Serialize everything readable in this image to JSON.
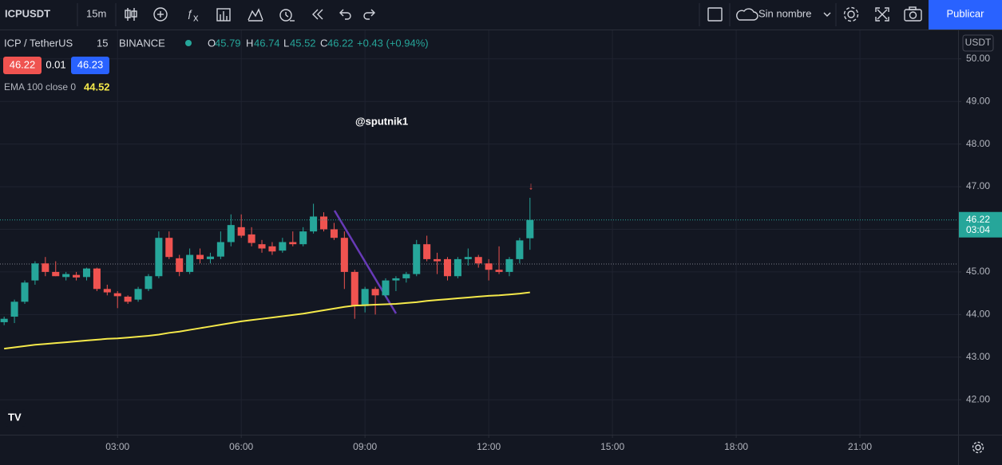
{
  "toolbar": {
    "symbol": "ICPUSDT",
    "interval": "15m",
    "layout_name": "Sin nombre",
    "publish": "Publicar"
  },
  "legend": {
    "symbol": "ICP / TetherUS",
    "interval": "15",
    "exchange": "BINANCE",
    "o": "O",
    "h": "H",
    "l": "L",
    "c": "C",
    "change": "+0.43 (+0.94%)",
    "bid": "46.22",
    "spread": "0.01",
    "ask": "46.23",
    "indicator": "EMA 100 close 0"
  },
  "watermark": "@sputnik1",
  "currency": "USDT",
  "countdown": "03:04",
  "chart_data": {
    "type": "candlestick",
    "x": [
      0.25,
      0.5,
      0.75,
      1,
      1.25,
      1.5,
      1.75,
      2,
      2.25,
      2.5,
      2.75,
      3,
      3.25,
      3.5,
      3.75,
      4,
      4.25,
      4.5,
      4.75,
      5,
      5.25,
      5.5,
      5.75,
      6,
      6.25,
      6.5,
      6.75,
      7,
      7.25,
      7.5,
      7.75,
      8,
      8.25,
      8.5,
      8.75,
      9,
      9.25,
      9.5,
      9.75,
      10,
      10.25,
      10.5,
      10.75,
      11,
      11.25,
      11.5,
      11.75,
      12,
      12.25,
      12.5,
      12.75,
      13
    ],
    "open": [
      43.82,
      43.95,
      44.3,
      44.8,
      45.2,
      45.0,
      44.88,
      44.93,
      44.88,
      45.08,
      44.6,
      44.5,
      44.42,
      44.35,
      44.6,
      44.9,
      45.8,
      45.32,
      45.0,
      45.4,
      45.3,
      45.36,
      45.7,
      46.05,
      45.88,
      45.65,
      45.6,
      45.5,
      45.7,
      45.65,
      45.95,
      46.3,
      46.0,
      45.8,
      45.0,
      44.2,
      44.6,
      44.45,
      44.8,
      44.85,
      44.95,
      45.65,
      45.3,
      45.3,
      44.9,
      45.3,
      45.35,
      45.2,
      45.05,
      45.0,
      45.3,
      45.79
    ],
    "high": [
      43.95,
      44.35,
      44.8,
      45.25,
      45.35,
      45.25,
      45.0,
      45.0,
      45.1,
      45.1,
      44.7,
      44.55,
      44.45,
      44.65,
      44.95,
      45.95,
      45.95,
      45.4,
      45.55,
      45.55,
      45.45,
      45.95,
      46.35,
      46.35,
      46.05,
      45.75,
      45.7,
      45.8,
      45.95,
      46.05,
      46.6,
      46.4,
      46.15,
      45.95,
      45.05,
      44.65,
      44.65,
      44.85,
      44.9,
      45.0,
      45.75,
      45.85,
      45.45,
      45.35,
      45.35,
      45.55,
      45.4,
      45.3,
      45.6,
      45.35,
      45.8,
      46.74
    ],
    "low": [
      43.75,
      43.8,
      44.25,
      44.7,
      44.9,
      44.9,
      44.8,
      44.8,
      44.8,
      44.55,
      44.45,
      44.15,
      44.25,
      44.3,
      44.55,
      44.85,
      45.3,
      44.9,
      44.95,
      45.2,
      45.2,
      45.3,
      45.6,
      45.8,
      45.6,
      45.45,
      45.4,
      45.45,
      45.6,
      45.6,
      45.9,
      45.95,
      45.75,
      44.6,
      43.9,
      44.05,
      44.0,
      44.4,
      44.55,
      44.75,
      44.9,
      45.25,
      44.95,
      44.8,
      44.85,
      45.15,
      45.1,
      44.8,
      44.95,
      44.9,
      45.2,
      45.52
    ],
    "close": [
      43.9,
      44.3,
      44.75,
      45.2,
      45.0,
      44.9,
      44.95,
      44.87,
      45.08,
      44.6,
      44.52,
      44.43,
      44.3,
      44.6,
      44.9,
      45.8,
      45.35,
      45.0,
      45.4,
      45.3,
      45.36,
      45.7,
      46.1,
      45.85,
      45.68,
      45.55,
      45.48,
      45.7,
      45.65,
      45.95,
      46.3,
      46.0,
      45.8,
      45.0,
      44.2,
      44.6,
      44.45,
      44.8,
      44.85,
      44.95,
      45.65,
      45.3,
      45.25,
      44.9,
      45.3,
      45.35,
      45.2,
      45.05,
      45.0,
      45.3,
      45.74,
      46.22
    ],
    "up_color": "#26a69a",
    "down_color": "#ef5350",
    "ema": {
      "name": "EMA 100 close 0",
      "color": "#f5e94a",
      "values": [
        43.2,
        43.23,
        43.26,
        43.29,
        43.31,
        43.33,
        43.35,
        43.37,
        43.39,
        43.41,
        43.43,
        43.44,
        43.46,
        43.48,
        43.5,
        43.53,
        43.57,
        43.6,
        43.64,
        43.68,
        43.72,
        43.76,
        43.8,
        43.84,
        43.87,
        43.9,
        43.93,
        43.96,
        43.99,
        44.02,
        44.06,
        44.1,
        44.14,
        44.18,
        44.21,
        44.22,
        44.23,
        44.24,
        44.25,
        44.27,
        44.29,
        44.32,
        44.34,
        44.36,
        44.38,
        44.4,
        44.42,
        44.44,
        44.45,
        44.47,
        44.49,
        44.52
      ]
    },
    "xlim": [
      0.15,
      23.38
    ],
    "xticks": [
      {
        "value": 3,
        "label": "03:00"
      },
      {
        "value": 6,
        "label": "06:00"
      },
      {
        "value": 9,
        "label": "09:00"
      },
      {
        "value": 12,
        "label": "12:00"
      },
      {
        "value": 15,
        "label": "15:00"
      },
      {
        "value": 18,
        "label": "18:00"
      },
      {
        "value": 21,
        "label": "21:00"
      }
    ],
    "ylim": [
      41.18,
      50.67
    ],
    "yticks": [
      {
        "value": 42,
        "label": "42.00"
      },
      {
        "value": 43,
        "label": "43.00"
      },
      {
        "value": 44,
        "label": "44.00"
      },
      {
        "value": 45,
        "label": "45.00"
      },
      {
        "value": 46,
        "label": "46.00"
      },
      {
        "value": 47,
        "label": "47.00"
      },
      {
        "value": 48,
        "label": "48.00"
      },
      {
        "value": 49,
        "label": "49.00"
      },
      {
        "value": 50,
        "label": "50.00"
      }
    ],
    "grid": true
  }
}
